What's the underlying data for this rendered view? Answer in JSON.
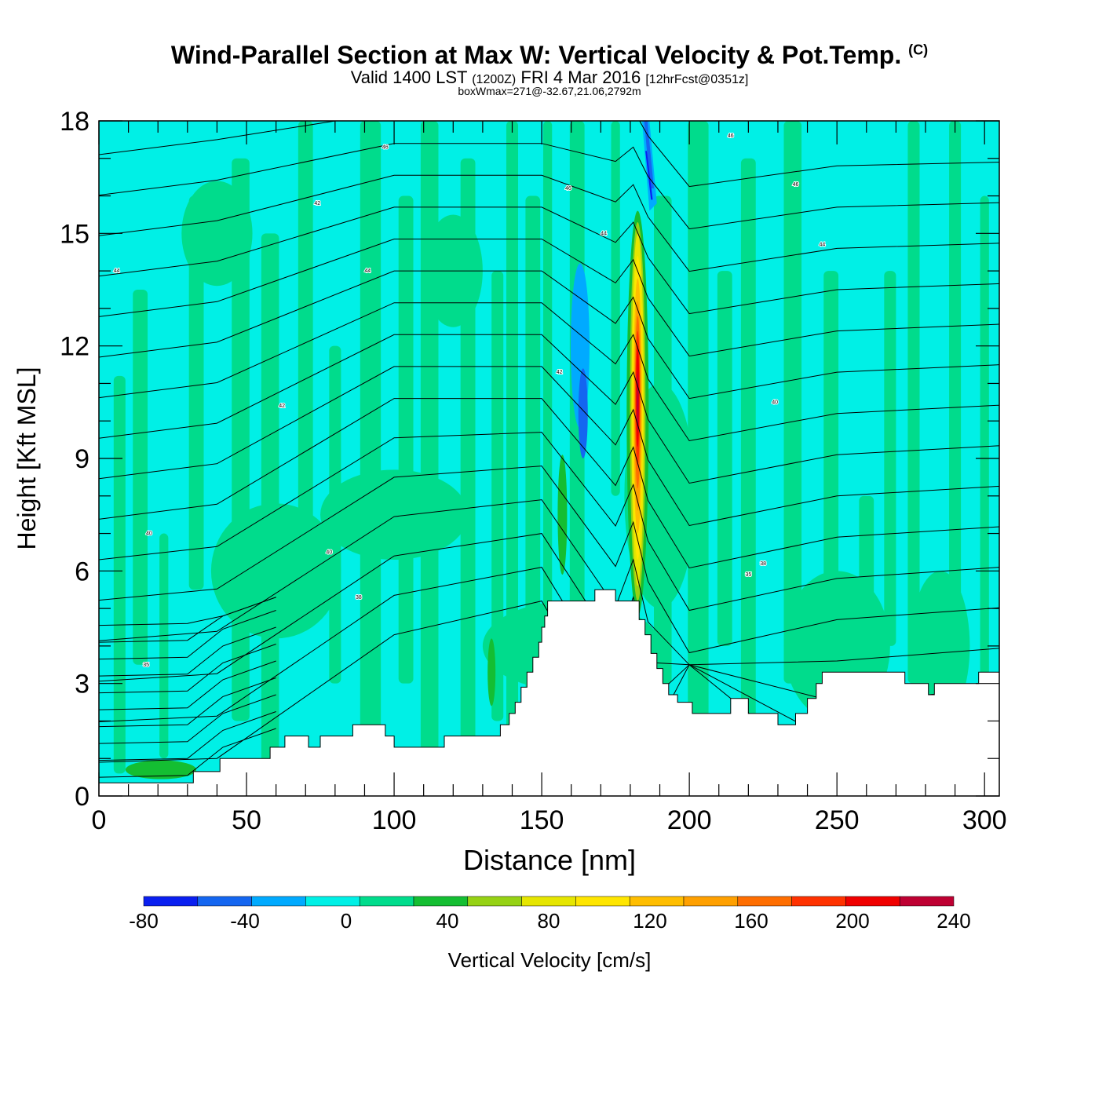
{
  "title": {
    "main": "Wind-Parallel Section at Max W: Vertical Velocity & Pot.Temp.",
    "copyright": "(C)",
    "valid_prefix": "Valid 1400 LST",
    "valid_z": "(1200Z)",
    "valid_date": "FRI 4 Mar 2016",
    "forecast": "[12hrFcst@0351z]",
    "box": "boxWmax=271@-32.67,21.06,2792m"
  },
  "chart_data": {
    "type": "heatmap",
    "xlabel": "Distance [nm]",
    "ylabel": "Height [Kft MSL]",
    "xlim": [
      0,
      305
    ],
    "ylim": [
      0,
      18
    ],
    "x_ticks": [
      0,
      50,
      100,
      150,
      200,
      250,
      300
    ],
    "y_ticks": [
      0,
      3,
      6,
      9,
      12,
      15,
      18
    ],
    "colorbar": {
      "label": "Vertical Velocity [cm/s]",
      "ticks": [
        -80,
        -40,
        0,
        40,
        80,
        120,
        160,
        200,
        240
      ],
      "levels": [
        -80,
        -60,
        -40,
        -20,
        0,
        20,
        40,
        60,
        80,
        100,
        120,
        140,
        160,
        180,
        200,
        220,
        240
      ],
      "colors": [
        "#0a1ff0",
        "#1466f0",
        "#00aaff",
        "#00f0e6",
        "#00dc8c",
        "#14be32",
        "#96d214",
        "#e6e600",
        "#ffe600",
        "#ffbe00",
        "#ffa000",
        "#ff6e00",
        "#ff3200",
        "#f00000",
        "#be0032"
      ]
    },
    "background_color": "#00f0e6",
    "terrain": [
      [
        0,
        0.35
      ],
      [
        32,
        0.35
      ],
      [
        32,
        0.65
      ],
      [
        41,
        0.65
      ],
      [
        41,
        1.0
      ],
      [
        58,
        1.0
      ],
      [
        58,
        1.3
      ],
      [
        63,
        1.3
      ],
      [
        63,
        1.6
      ],
      [
        71,
        1.6
      ],
      [
        71,
        1.3
      ],
      [
        75,
        1.3
      ],
      [
        75,
        1.6
      ],
      [
        86,
        1.6
      ],
      [
        86,
        1.9
      ],
      [
        97,
        1.9
      ],
      [
        97,
        1.6
      ],
      [
        100,
        1.6
      ],
      [
        100,
        1.3
      ],
      [
        117,
        1.3
      ],
      [
        117,
        1.6
      ],
      [
        136,
        1.6
      ],
      [
        136,
        1.9
      ],
      [
        139,
        1.9
      ],
      [
        139,
        2.2
      ],
      [
        141,
        2.2
      ],
      [
        141,
        2.5
      ],
      [
        143,
        2.5
      ],
      [
        143,
        2.9
      ],
      [
        145,
        2.9
      ],
      [
        145,
        3.3
      ],
      [
        147,
        3.3
      ],
      [
        147,
        3.7
      ],
      [
        149,
        3.7
      ],
      [
        149,
        4.1
      ],
      [
        150,
        4.1
      ],
      [
        150,
        4.5
      ],
      [
        151,
        4.5
      ],
      [
        151,
        4.8
      ],
      [
        152,
        4.8
      ],
      [
        152,
        5.2
      ],
      [
        168,
        5.2
      ],
      [
        168,
        5.5
      ],
      [
        175,
        5.5
      ],
      [
        175,
        5.2
      ],
      [
        183,
        5.2
      ],
      [
        183,
        4.7
      ],
      [
        185,
        4.7
      ],
      [
        185,
        4.3
      ],
      [
        187,
        4.3
      ],
      [
        187,
        3.8
      ],
      [
        189,
        3.8
      ],
      [
        189,
        3.4
      ],
      [
        191,
        3.4
      ],
      [
        191,
        3.0
      ],
      [
        193,
        3.0
      ],
      [
        193,
        2.7
      ],
      [
        196,
        2.7
      ],
      [
        196,
        2.5
      ],
      [
        201,
        2.5
      ],
      [
        201,
        2.2
      ],
      [
        214,
        2.2
      ],
      [
        214,
        2.6
      ],
      [
        220,
        2.6
      ],
      [
        220,
        2.2
      ],
      [
        230,
        2.2
      ],
      [
        230,
        1.9
      ],
      [
        236,
        1.9
      ],
      [
        236,
        2.2
      ],
      [
        240,
        2.2
      ],
      [
        240,
        2.6
      ],
      [
        243,
        2.6
      ],
      [
        243,
        3.0
      ],
      [
        245,
        3.0
      ],
      [
        245,
        3.3
      ],
      [
        273,
        3.3
      ],
      [
        273,
        3.0
      ],
      [
        281,
        3.0
      ],
      [
        281,
        2.7
      ],
      [
        283,
        2.7
      ],
      [
        283,
        3.0
      ],
      [
        298,
        3.0
      ],
      [
        298,
        3.3
      ],
      [
        305,
        3.3
      ]
    ],
    "updraft_max": {
      "value": 271,
      "x": 183,
      "height_m": 2792,
      "lat": -32.67,
      "lon": 21.06
    },
    "theta_contours": {
      "label_values": [
        "46",
        "46",
        "46",
        "46",
        "44",
        "44",
        "44",
        "44",
        "42",
        "42",
        "42",
        "40",
        "40",
        "40",
        "38",
        "38",
        "35",
        "35"
      ]
    }
  }
}
